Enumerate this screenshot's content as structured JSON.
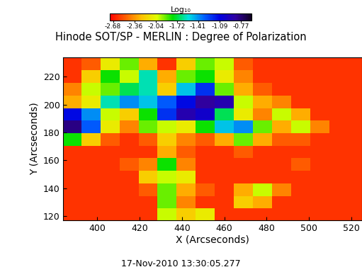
{
  "chart_data": {
    "type": "heatmap",
    "title": "Hinode SOT/SP - MERLIN : Degree of Polarization",
    "x_label": "X (Arcseconds)",
    "y_label": "Y (Arcseconds)",
    "footer": "17-Nov-2010 13:30:05.277",
    "colorbar_label": "Log₁₀",
    "xlim": [
      384,
      525
    ],
    "ylim": [
      117,
      234
    ],
    "xticks": [
      400,
      420,
      440,
      460,
      480,
      500,
      520
    ],
    "yticks": [
      120,
      140,
      160,
      180,
      200,
      220
    ],
    "colorbar_range": [
      -2.73,
      -0.61
    ],
    "colorbar_ticks": [
      -2.68,
      -2.36,
      -2.04,
      -1.72,
      -1.41,
      -1.09,
      -0.77
    ],
    "x": [
      388,
      397,
      406,
      415,
      424,
      433,
      442,
      451,
      460,
      469,
      478,
      487,
      496,
      505,
      514,
      523
    ],
    "y": [
      121,
      130,
      139,
      148,
      157,
      166,
      175,
      184,
      193,
      202,
      211,
      220,
      229
    ],
    "cells": [
      [
        -2.6,
        -2.6,
        -2.6,
        -2.6,
        -2.6,
        -2.0,
        -2.2,
        -2.1,
        -2.6,
        -2.6,
        -2.6,
        -2.6,
        -2.6,
        -2.6,
        -2.6,
        -2.6
      ],
      [
        -2.6,
        -2.6,
        -2.6,
        -2.6,
        -2.6,
        -1.9,
        -2.4,
        -2.6,
        -2.6,
        -2.2,
        -2.3,
        -2.6,
        -2.6,
        -2.6,
        -2.6,
        -2.6
      ],
      [
        -2.6,
        -2.6,
        -2.6,
        -2.6,
        -2.5,
        -1.9,
        -2.3,
        -2.5,
        -2.6,
        -2.3,
        -2.0,
        -2.4,
        -2.6,
        -2.6,
        -2.6,
        -2.6
      ],
      [
        -2.6,
        -2.6,
        -2.6,
        -2.6,
        -2.2,
        -2.0,
        -2.1,
        -2.6,
        -2.6,
        -2.6,
        -2.6,
        -2.6,
        -2.6,
        -2.6,
        -2.6,
        -2.6
      ],
      [
        -2.6,
        -2.6,
        -2.6,
        -2.5,
        -2.4,
        -1.8,
        -2.4,
        -2.6,
        -2.6,
        -2.6,
        -2.6,
        -2.6,
        -2.5,
        -2.6,
        -2.6,
        -2.6
      ],
      [
        -2.6,
        -2.6,
        -2.6,
        -2.6,
        -2.6,
        -2.3,
        -2.5,
        -2.6,
        -2.6,
        -2.5,
        -2.6,
        -2.6,
        -2.6,
        -2.6,
        -2.6,
        -2.6
      ],
      [
        -1.8,
        -2.2,
        -2.5,
        -2.6,
        -2.5,
        -2.2,
        -2.4,
        -2.5,
        -2.3,
        -1.9,
        -2.3,
        -2.5,
        -2.5,
        -2.6,
        -2.6,
        -2.6
      ],
      [
        -0.8,
        -1.3,
        -2.1,
        -2.4,
        -1.9,
        -2.0,
        -2.1,
        -1.8,
        -1.5,
        -1.4,
        -1.9,
        -2.3,
        -2.0,
        -2.4,
        -2.6,
        -2.6
      ],
      [
        -1.1,
        -1.4,
        -2.0,
        -2.2,
        -1.8,
        -1.2,
        -0.9,
        -1.0,
        -1.7,
        -2.1,
        -2.4,
        -2.0,
        -2.3,
        -2.6,
        -2.6,
        -2.6
      ],
      [
        -2.3,
        -2.1,
        -1.6,
        -1.4,
        -1.5,
        -1.3,
        -1.1,
        -0.85,
        -0.9,
        -2.0,
        -2.3,
        -2.4,
        -2.6,
        -2.6,
        -2.6,
        -2.6
      ],
      [
        -2.4,
        -2.0,
        -1.9,
        -1.7,
        -1.6,
        -2.2,
        -1.5,
        -1.2,
        -1.9,
        -2.3,
        -2.5,
        -2.6,
        -2.6,
        -2.6,
        -2.6,
        -2.6
      ],
      [
        -2.6,
        -2.2,
        -1.8,
        -2.0,
        -1.6,
        -2.3,
        -1.9,
        -1.8,
        -2.1,
        -2.4,
        -2.6,
        -2.6,
        -2.6,
        -2.6,
        -2.6,
        -2.6
      ],
      [
        -2.6,
        -2.5,
        -2.1,
        -1.9,
        -2.3,
        -2.6,
        -2.2,
        -1.9,
        -2.0,
        -2.5,
        -2.6,
        -2.6,
        -2.6,
        -2.6,
        -2.6,
        -2.6
      ]
    ]
  }
}
